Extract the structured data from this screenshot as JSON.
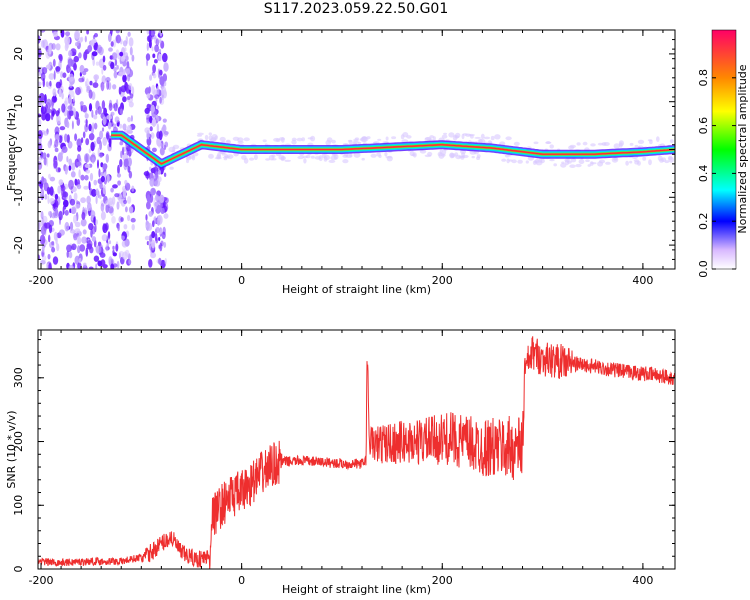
{
  "title": "S117.2023.059.22.50.G01",
  "chart_data": [
    {
      "type": "heatmap",
      "xlabel": "Height of straight line (km)",
      "ylabel": "Frequency (Hz)",
      "xlim": [
        -203,
        432
      ],
      "ylim": [
        -25,
        25
      ],
      "xticks": [
        -200,
        0,
        200,
        400
      ],
      "yticks": [
        -20,
        -10,
        0,
        10,
        20
      ],
      "colorbar": {
        "label": "Normalized spectral amplitude",
        "range": [
          0,
          1
        ],
        "ticks": [
          0.0,
          0.2,
          0.4,
          0.6,
          0.8
        ]
      },
      "ridge": {
        "description_points_x": [
          -120,
          -100,
          -80,
          -60,
          -40,
          0,
          100,
          150,
          200,
          250,
          300,
          350,
          400,
          432
        ],
        "frequency_hz": [
          3,
          0,
          -3,
          -1,
          1,
          0,
          0,
          0.5,
          1,
          0.3,
          -1,
          -1,
          -0.5,
          0
        ]
      },
      "colors": {
        "low": "#c8b0ff",
        "mid": "#00e0ff",
        "high": "#ff2060",
        "ridge_core": "#ff3030"
      }
    },
    {
      "type": "line",
      "xlabel": "Height of straight line (km)",
      "ylabel": "SNR (10 * v/v)",
      "xlim": [
        -203,
        432
      ],
      "ylim": [
        0,
        375
      ],
      "xticks": [
        -200,
        0,
        200,
        400
      ],
      "yticks": [
        0,
        100,
        200,
        300
      ],
      "color": "#ee2e2e",
      "series": [
        {
          "x": [
            -203,
            -180,
            -150,
            -120,
            -95,
            -80,
            -70,
            -60,
            -45,
            -32,
            -30,
            -20,
            -10,
            0,
            10,
            20,
            30,
            40,
            60,
            80,
            100,
            120,
            124,
            125,
            126,
            127,
            130,
            150,
            180,
            210,
            240,
            270,
            280,
            282,
            290,
            300,
            320,
            350,
            380,
            410,
            432
          ],
          "values": [
            12,
            10,
            12,
            12,
            20,
            40,
            50,
            25,
            15,
            20,
            80,
            100,
            115,
            120,
            135,
            150,
            163,
            168,
            170,
            168,
            165,
            165,
            170,
            325,
            310,
            200,
            195,
            198,
            200,
            205,
            190,
            190,
            190,
            310,
            340,
            330,
            325,
            318,
            310,
            305,
            300
          ]
        }
      ]
    }
  ]
}
